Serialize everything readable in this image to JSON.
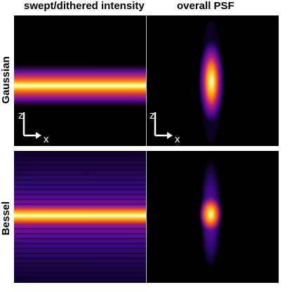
{
  "headers": {
    "left": "swept/dithered intensity",
    "right": "overall PSF"
  },
  "rows": {
    "gaussian": "Gaussian",
    "bessel": "Bessel"
  },
  "axes": {
    "z": "z",
    "x": "x"
  },
  "colors": {
    "background": "#000000",
    "colormap": "hot (black-purple-orange-yellow-white)",
    "axis": "#ffffff",
    "divider": "#bdbdbd"
  }
}
